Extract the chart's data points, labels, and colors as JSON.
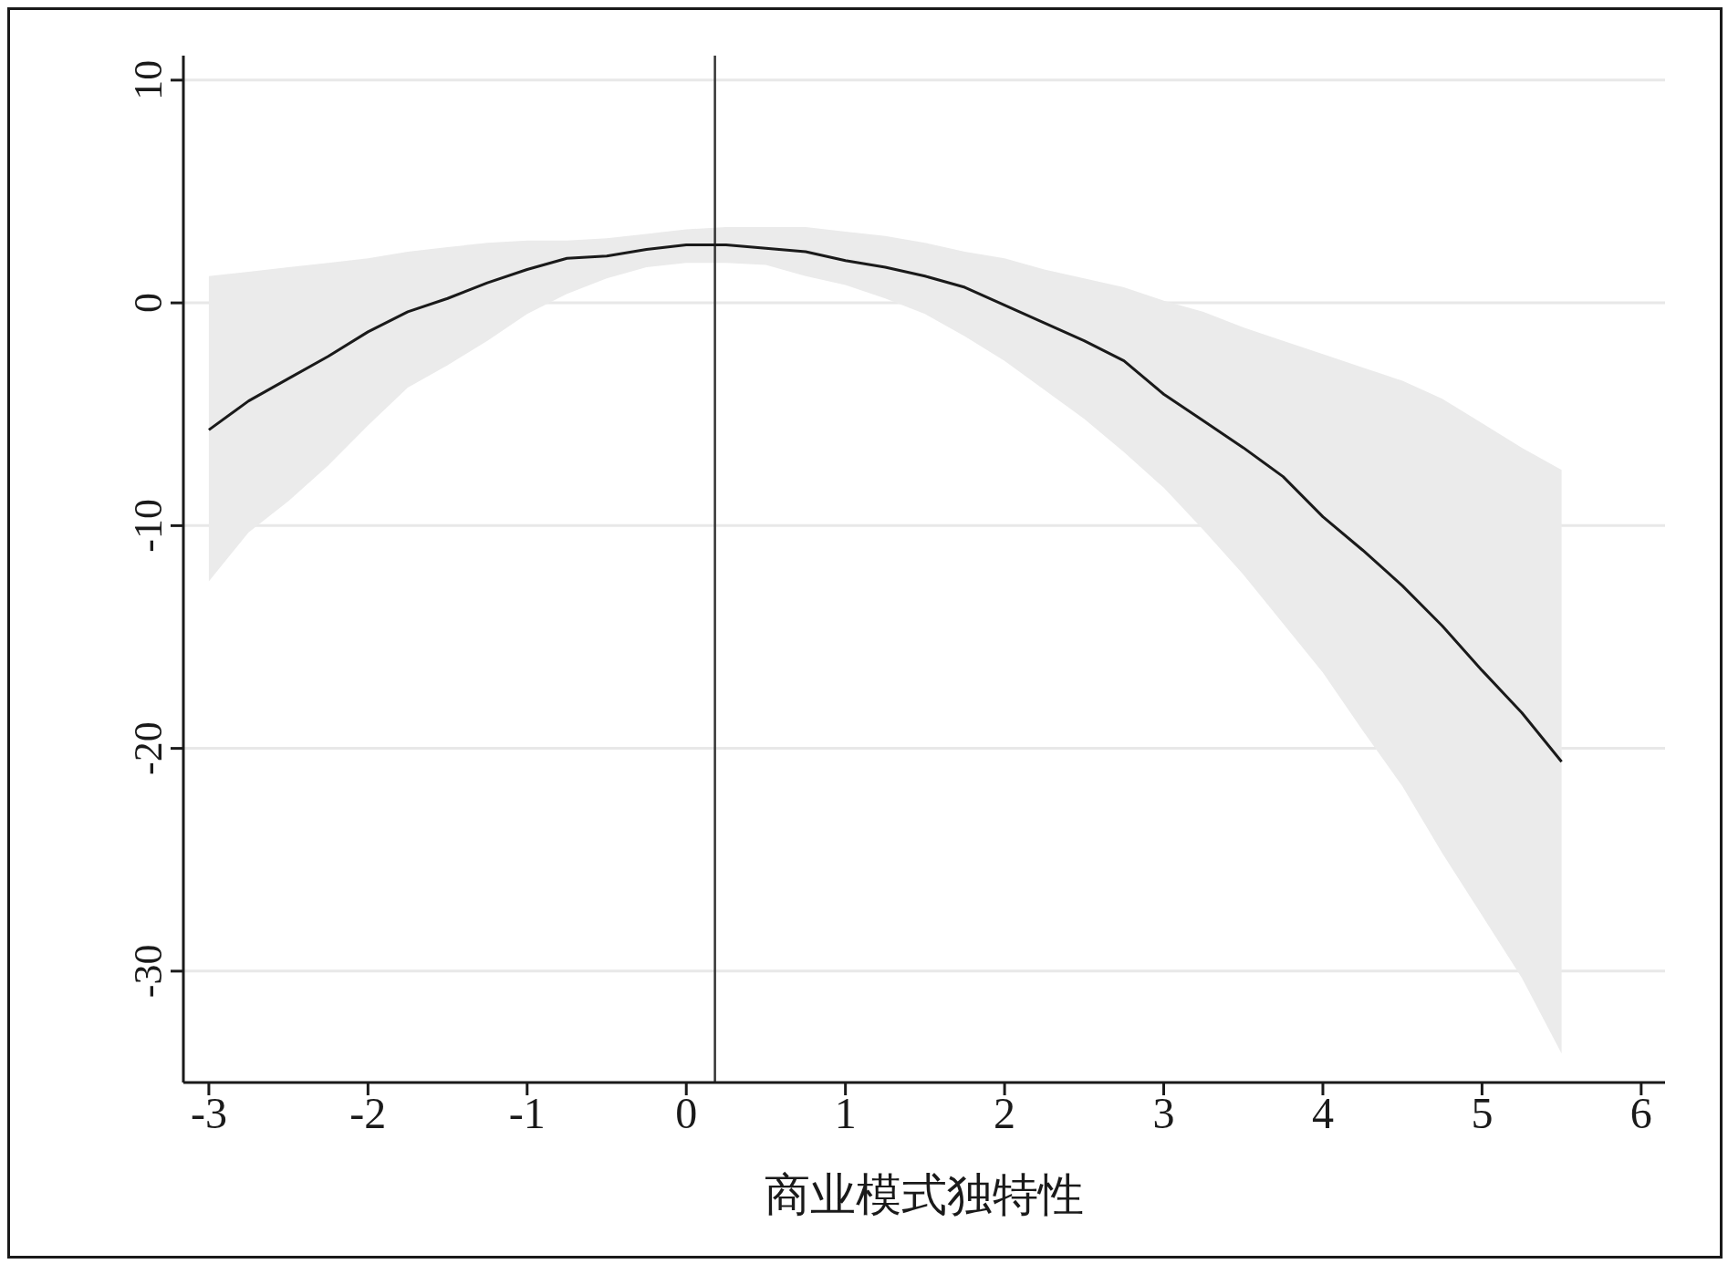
{
  "chart_data": {
    "type": "line",
    "xlabel": "商业模式独特性",
    "x": [
      -3,
      -2.75,
      -2.5,
      -2.25,
      -2,
      -1.75,
      -1.5,
      -1.25,
      -1,
      -0.75,
      -0.5,
      -0.25,
      0,
      0.25,
      0.5,
      0.75,
      1,
      1.25,
      1.5,
      1.75,
      2,
      2.25,
      2.5,
      2.75,
      3,
      3.25,
      3.5,
      3.75,
      4,
      4.25,
      4.5,
      4.75,
      5,
      5.25,
      5.5
    ],
    "series": [
      {
        "color": "#1a1a1a",
        "values": [
          -5.7,
          -4.4,
          -3.4,
          -2.4,
          -1.3,
          -0.4,
          0.2,
          0.9,
          1.5,
          2.0,
          2.1,
          2.4,
          2.6,
          2.6,
          2.45,
          2.3,
          1.9,
          1.6,
          1.2,
          0.7,
          -0.1,
          -0.9,
          -1.7,
          -2.6,
          -4.1,
          -5.3,
          -6.5,
          -7.8,
          -9.6,
          -11.1,
          -12.7,
          -14.5,
          -16.5,
          -18.4,
          -20.6
        ],
        "upper": [
          1.2,
          1.4,
          1.6,
          1.8,
          2.0,
          2.3,
          2.5,
          2.7,
          2.8,
          2.8,
          2.9,
          3.1,
          3.3,
          3.4,
          3.4,
          3.4,
          3.2,
          3.0,
          2.7,
          2.3,
          2.0,
          1.5,
          1.1,
          0.7,
          0.1,
          -0.4,
          -1.1,
          -1.7,
          -2.3,
          -2.9,
          -3.5,
          -4.3,
          -5.4,
          -6.5,
          -7.5
        ],
        "lower": [
          -12.5,
          -10.3,
          -8.9,
          -7.3,
          -5.5,
          -3.8,
          -2.8,
          -1.7,
          -0.5,
          0.4,
          1.1,
          1.6,
          1.8,
          1.8,
          1.7,
          1.2,
          0.8,
          0.2,
          -0.5,
          -1.5,
          -2.6,
          -3.9,
          -5.2,
          -6.7,
          -8.3,
          -10.2,
          -12.2,
          -14.4,
          -16.6,
          -19.2,
          -21.7,
          -24.7,
          -27.5,
          -30.3,
          -33.7
        ]
      }
    ],
    "xlim": [
      -3.16,
      6.15
    ],
    "xticks": [
      -3,
      -2,
      -1,
      0,
      1,
      2,
      3,
      4,
      5,
      6
    ],
    "ylim": [
      -35,
      11.1
    ],
    "yticks": [
      -30,
      -20,
      -10,
      0,
      10
    ],
    "ref_lines": [
      {
        "axis": "x",
        "value": 0.18,
        "color": "#333333"
      }
    ],
    "grid": "y",
    "marker": "none",
    "line_style": "solid"
  }
}
